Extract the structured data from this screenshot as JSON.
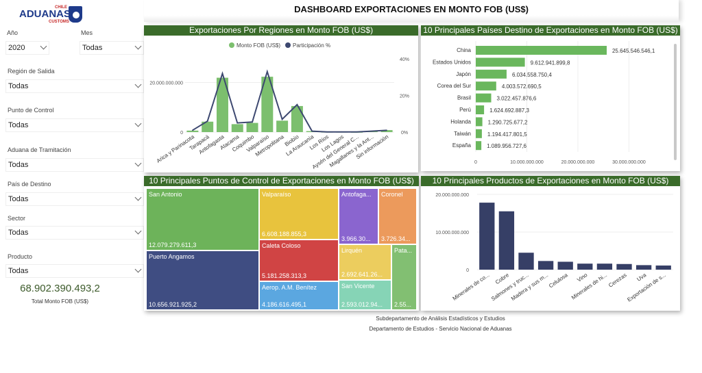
{
  "logo": {
    "brand": "ADUANAS",
    "top": "CHILE",
    "bottom": "CUSTOMS"
  },
  "title": "DASHBOARD EXPORTACIONES EN MONTO FOB (US$)",
  "filters": [
    {
      "label": "Año",
      "value": "2020"
    },
    {
      "label": "Mes",
      "value": "Todas"
    },
    {
      "label": "Región de Salida",
      "value": "Todas"
    },
    {
      "label": "Punto de Control",
      "value": "Todas"
    },
    {
      "label": "Aduana de Tramitación",
      "value": "Todas"
    },
    {
      "label": "País de Destino",
      "value": "Todas"
    },
    {
      "label": "Sector",
      "value": "Todas"
    },
    {
      "label": "Producto",
      "value": "Todas"
    }
  ],
  "kpi": {
    "value": "68.902.390.493,2",
    "label": "Total Monto FOB (US$)"
  },
  "colors": {
    "header_green": "#3a6b2a",
    "bar_green": "#7cbf6e",
    "line_navy": "#3d4870",
    "product_navy": "#363f66"
  },
  "footer": [
    "Subdepartamento de Análisis Estadísticos y Estudios",
    "Departamento de Estudios - Servicio Nacional de Aduanas"
  ],
  "chart_data": [
    {
      "type": "bar",
      "title": "Exportaciones Por Regiones en Monto FOB (US$)",
      "legend": [
        "Monto FOB (US$)",
        "Participación %"
      ],
      "legend_position": "top-center",
      "categories": [
        "Arica y Parinacota",
        "Tarapacá",
        "Antofagasta",
        "Atacama",
        "Coquimbo",
        "Valparaíso",
        "Metropolitana",
        "Biobío",
        "La Araucanía",
        "Los Ríos",
        "Los Lagos",
        "Aysén del General C...",
        "Magallanes y la Ant...",
        "Sin información"
      ],
      "series": [
        {
          "name": "Monto FOB (US$)",
          "type": "bar",
          "axis": "left",
          "values": [
            600000000,
            4200000000,
            21900000000,
            3200000000,
            3700000000,
            22300000000,
            4600000000,
            10500000000,
            400000000,
            100000000,
            100000000,
            50000000,
            300000000,
            800000000
          ]
        },
        {
          "name": "Participación %",
          "type": "line",
          "axis": "right",
          "values": [
            1,
            6,
            32,
            5,
            5.5,
            33,
            7,
            15,
            0.5,
            0.1,
            0.1,
            0.1,
            0.5,
            1
          ]
        }
      ],
      "yticks_left": [
        "0",
        "20.000.000.000"
      ],
      "yticks_right": [
        "0%",
        "20%",
        "40%"
      ],
      "ylim_left": [
        0,
        29500000000
      ],
      "ylim_right": [
        0,
        40
      ]
    },
    {
      "type": "bar",
      "orientation": "horizontal",
      "title": "10 Principales Países Destino de Exportaciones en Monto FOB (US$)",
      "categories": [
        "China",
        "Estados Unidos",
        "Japón",
        "Corea del Sur",
        "Brasil",
        "Perú",
        "Holanda",
        "Taiwán",
        "España"
      ],
      "values": [
        25645546546.1,
        9612941899.8,
        6034558750.4,
        4003572690.5,
        3022457876.6,
        1624692887.3,
        1290725677.2,
        1194417801.5,
        1089956727.6
      ],
      "data_labels": [
        "25.645.546.546,1",
        "9.612.941.899,8",
        "6.034.558.750,4",
        "4.003.572.690,5",
        "3.022.457.876,6",
        "1.624.692.887,3",
        "1.290.725.677,2",
        "1.194.417.801,5",
        "1.089.956.727,6"
      ],
      "xticks": [
        "0",
        "10.000.000.000",
        "20.000.000.000",
        "30.000.000.000"
      ],
      "xlim": [
        0,
        38000000000
      ]
    },
    {
      "type": "treemap",
      "title": "10 Principales Puntos de Control de Exportaciones en Monto FOB (US$)",
      "items": [
        {
          "name": "San Antonio",
          "label": "12.079.279.611,3",
          "value": 12079279611.3,
          "color": "#6db35a"
        },
        {
          "name": "Puerto Angamos",
          "label": "10.656.921.925,2",
          "value": 10656921925.2,
          "color": "#3f4d82"
        },
        {
          "name": "Valparaíso",
          "label": "6.608.188.855,3",
          "value": 6608188855.3,
          "color": "#e8c33d"
        },
        {
          "name": "Caleta Coloso",
          "label": "5.181.258.313,3",
          "value": 5181258313.3,
          "color": "#d04444"
        },
        {
          "name": "Aerop. A.M. Benítez",
          "label": "4.186.616.495,1",
          "value": 4186616495.1,
          "color": "#5ba7e0"
        },
        {
          "name": "Antofaga...",
          "label": "3.966.30...",
          "value": 3966300000,
          "color": "#8a65cf"
        },
        {
          "name": "Coronel",
          "label": "3.726.34...",
          "value": 3726340000,
          "color": "#ec9a5c"
        },
        {
          "name": "Lirquén",
          "label": "2.692.641.26...",
          "value": 2692641260,
          "color": "#eccd5e"
        },
        {
          "name": "San Vicente",
          "label": "2.593.012.94...",
          "value": 2593012940,
          "color": "#86d4b6"
        },
        {
          "name": "Pata...",
          "label": "2.55...",
          "value": 2550000000,
          "color": "#82bf72"
        }
      ]
    },
    {
      "type": "bar",
      "title": "10 Principales Productos de Exportaciones en Monto FOB (US$)",
      "categories": [
        "Minerales de co...",
        "Cobre",
        "Salmones y truc...",
        "Madera y sus m...",
        "Celulosa",
        "Vino",
        "Minerales de hi...",
        "Cerezas",
        "Uva",
        "Exportación de s..."
      ],
      "values": [
        17800000000,
        15500000000,
        4500000000,
        2300000000,
        2100000000,
        1600000000,
        1600000000,
        1500000000,
        1200000000,
        1100000000
      ],
      "yticks": [
        "0",
        "10.000.000.000",
        "20.000.000.000"
      ],
      "ylim": [
        0,
        20000000000
      ]
    }
  ]
}
